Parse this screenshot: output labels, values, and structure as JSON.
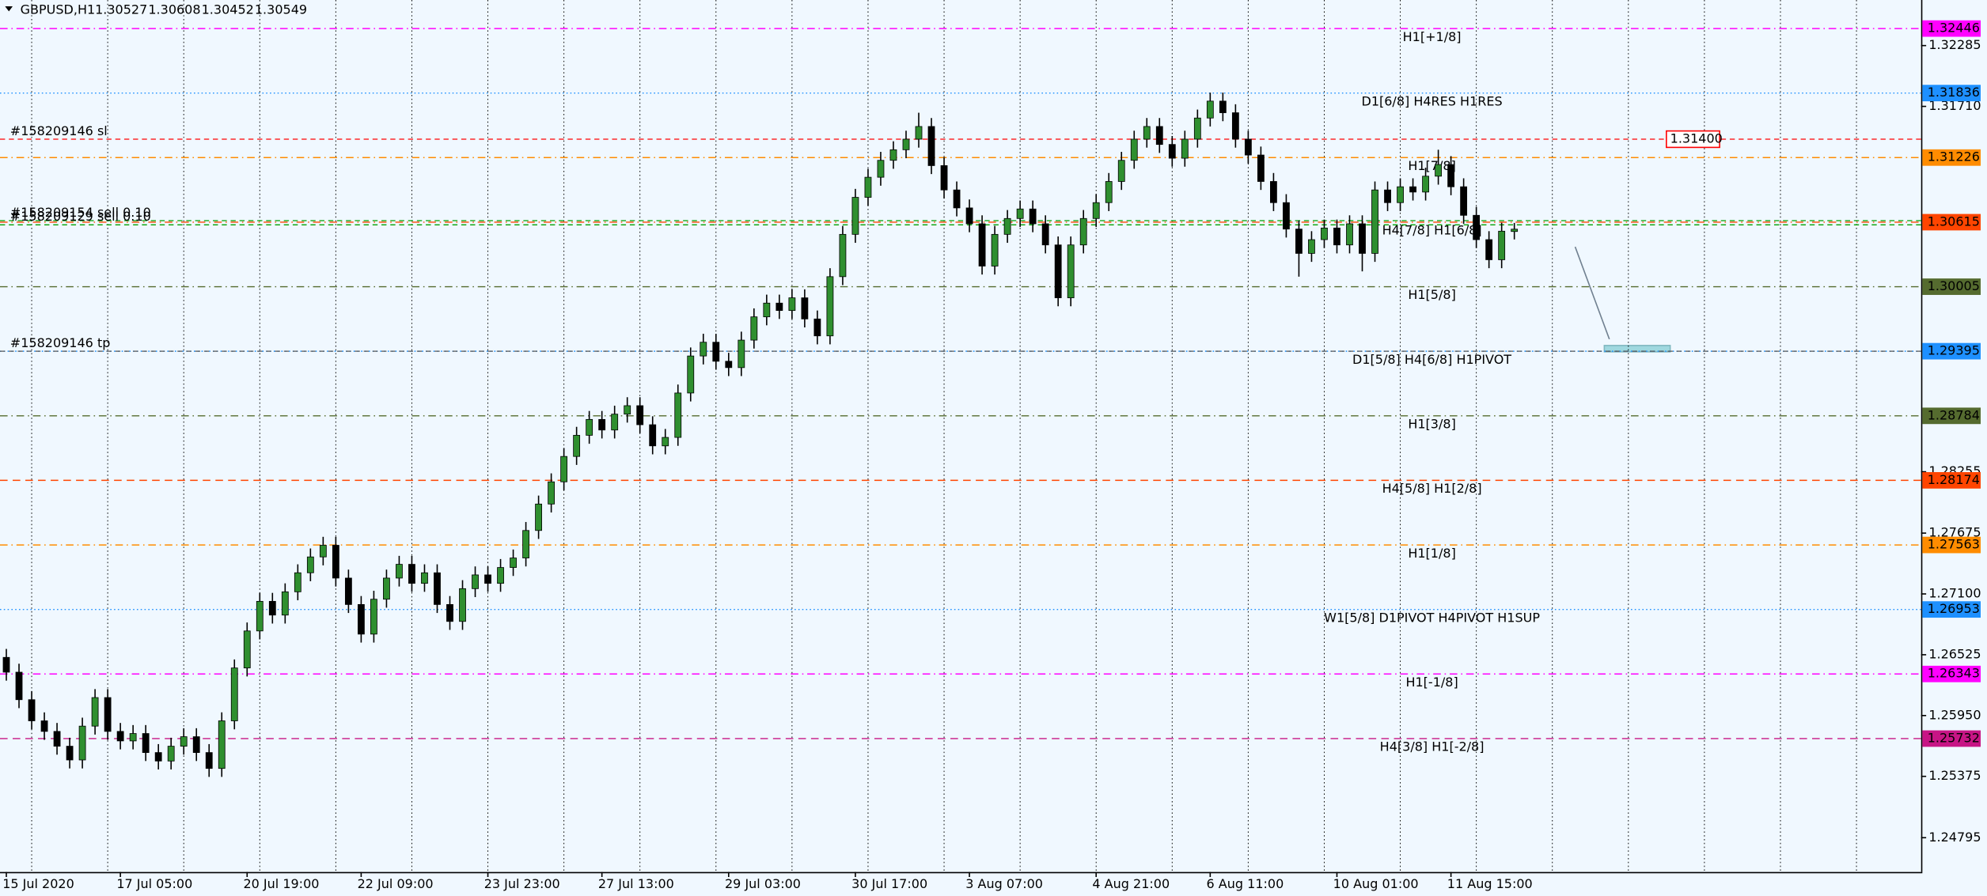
{
  "chart_data": {
    "type": "candlestick",
    "title": "GBPUSD,H1",
    "up_color": "#2f8f2f",
    "down_color": "#000000",
    "ylim": [
      1.24471,
      1.32716
    ],
    "yticks": [
      1.32285,
      {
        "value": 1.3171,
        "label": "1.31710"
      },
      1.28255,
      1.27675,
      {
        "value": 1.271,
        "label": "1.27100"
      },
      1.26525,
      {
        "value": 1.2595,
        "label": "1.25950"
      },
      1.25375,
      1.24795
    ],
    "categories": [
      "15 Jul 2020",
      null,
      null,
      null,
      null,
      null,
      null,
      null,
      null,
      "17 Jul 05:00",
      null,
      null,
      null,
      null,
      null,
      null,
      null,
      null,
      null,
      "20 Jul 19:00",
      null,
      null,
      null,
      null,
      null,
      null,
      null,
      null,
      "22 Jul 09:00",
      null,
      null,
      null,
      null,
      null,
      null,
      null,
      null,
      null,
      "23 Jul 23:00",
      null,
      null,
      null,
      null,
      null,
      null,
      null,
      null,
      "27 Jul 13:00",
      null,
      null,
      null,
      null,
      null,
      null,
      null,
      null,
      null,
      "29 Jul 03:00",
      null,
      null,
      null,
      null,
      null,
      null,
      null,
      null,
      null,
      "30 Jul 17:00",
      null,
      null,
      null,
      null,
      null,
      null,
      null,
      null,
      "3 Aug 07:00",
      null,
      null,
      null,
      null,
      null,
      null,
      null,
      null,
      null,
      "4 Aug 21:00",
      null,
      null,
      null,
      null,
      null,
      null,
      null,
      null,
      "6 Aug 11:00",
      null,
      null,
      null,
      null,
      null,
      null,
      null,
      null,
      null,
      "10 Aug 01:00",
      null,
      null,
      null,
      null,
      null,
      null,
      null,
      null,
      "11 Aug 15:00",
      null,
      null,
      null,
      null,
      null
    ],
    "ohlc": [
      [
        1.265,
        1.2658,
        1.2628,
        1.2636
      ],
      [
        1.2636,
        1.2644,
        1.2602,
        1.261
      ],
      [
        1.261,
        1.2618,
        1.2582,
        1.259
      ],
      [
        1.259,
        1.2598,
        1.2572,
        1.258
      ],
      [
        1.258,
        1.2588,
        1.2558,
        1.2566
      ],
      [
        1.2566,
        1.2574,
        1.2545,
        1.2553
      ],
      [
        1.2553,
        1.2593,
        1.2545,
        1.2585
      ],
      [
        1.2585,
        1.262,
        1.2577,
        1.2612
      ],
      [
        1.2612,
        1.262,
        1.2572,
        1.258
      ],
      [
        1.258,
        1.2588,
        1.2563,
        1.2571
      ],
      [
        1.2571,
        1.2586,
        1.2563,
        1.2578
      ],
      [
        1.2578,
        1.2586,
        1.2552,
        1.256
      ],
      [
        1.256,
        1.2568,
        1.2544,
        1.2552
      ],
      [
        1.2552,
        1.2574,
        1.2544,
        1.2566
      ],
      [
        1.2566,
        1.2583,
        1.2558,
        1.2575
      ],
      [
        1.2575,
        1.2583,
        1.2552,
        1.256
      ],
      [
        1.256,
        1.2568,
        1.2537,
        1.2545
      ],
      [
        1.2545,
        1.2598,
        1.2537,
        1.259
      ],
      [
        1.259,
        1.2648,
        1.2582,
        1.264
      ],
      [
        1.264,
        1.2683,
        1.2632,
        1.2675
      ],
      [
        1.2675,
        1.2711,
        1.2667,
        1.2703
      ],
      [
        1.2703,
        1.2711,
        1.2682,
        1.269
      ],
      [
        1.269,
        1.272,
        1.2682,
        1.2712
      ],
      [
        1.2712,
        1.2738,
        1.2704,
        1.273
      ],
      [
        1.273,
        1.2753,
        1.2722,
        1.2745
      ],
      [
        1.2745,
        1.2764,
        1.2737,
        1.2756
      ],
      [
        1.2756,
        1.2764,
        1.2717,
        1.2725
      ],
      [
        1.2725,
        1.2733,
        1.2692,
        1.27
      ],
      [
        1.27,
        1.2708,
        1.2664,
        1.2672
      ],
      [
        1.2672,
        1.2713,
        1.2664,
        1.2705
      ],
      [
        1.2705,
        1.2733,
        1.2697,
        1.2725
      ],
      [
        1.2725,
        1.2746,
        1.2717,
        1.2738
      ],
      [
        1.2738,
        1.2746,
        1.2712,
        1.272
      ],
      [
        1.272,
        1.2738,
        1.2712,
        1.273
      ],
      [
        1.273,
        1.2738,
        1.2692,
        1.27
      ],
      [
        1.27,
        1.2708,
        1.2676,
        1.2684
      ],
      [
        1.2684,
        1.2723,
        1.2676,
        1.2715
      ],
      [
        1.2715,
        1.2736,
        1.2707,
        1.2728
      ],
      [
        1.2728,
        1.2736,
        1.2712,
        1.272
      ],
      [
        1.272,
        1.2743,
        1.2712,
        1.2735
      ],
      [
        1.2735,
        1.2752,
        1.2727,
        1.2744
      ],
      [
        1.2744,
        1.2778,
        1.2736,
        1.277
      ],
      [
        1.277,
        1.2803,
        1.2762,
        1.2795
      ],
      [
        1.2795,
        1.2824,
        1.2787,
        1.2816
      ],
      [
        1.2816,
        1.2848,
        1.2808,
        1.284
      ],
      [
        1.284,
        1.2868,
        1.2832,
        1.286
      ],
      [
        1.286,
        1.2883,
        1.2852,
        1.2875
      ],
      [
        1.2875,
        1.2883,
        1.2857,
        1.2865
      ],
      [
        1.2865,
        1.2888,
        1.2857,
        1.288
      ],
      [
        1.288,
        1.2896,
        1.2872,
        1.2888
      ],
      [
        1.2888,
        1.2896,
        1.2862,
        1.287
      ],
      [
        1.287,
        1.2878,
        1.2842,
        1.285
      ],
      [
        1.285,
        1.2866,
        1.2842,
        1.2858
      ],
      [
        1.2858,
        1.2908,
        1.285,
        1.29
      ],
      [
        1.29,
        1.2943,
        1.2892,
        1.2935
      ],
      [
        1.2935,
        1.2956,
        1.2927,
        1.2948
      ],
      [
        1.2948,
        1.2956,
        1.2922,
        1.293
      ],
      [
        1.293,
        1.2938,
        1.2916,
        1.2924
      ],
      [
        1.2924,
        1.2958,
        1.2916,
        1.295
      ],
      [
        1.295,
        1.298,
        1.2942,
        1.2972
      ],
      [
        1.2972,
        1.2993,
        1.2964,
        1.2985
      ],
      [
        1.2985,
        1.2993,
        1.297,
        1.2978
      ],
      [
        1.2978,
        1.2998,
        1.297,
        1.299
      ],
      [
        1.299,
        1.2998,
        1.2962,
        1.297
      ],
      [
        1.297,
        1.2978,
        1.2946,
        1.2954
      ],
      [
        1.2954,
        1.3018,
        1.2946,
        1.301
      ],
      [
        1.301,
        1.3058,
        1.3002,
        1.305
      ],
      [
        1.305,
        1.3093,
        1.3042,
        1.3085
      ],
      [
        1.3085,
        1.3112,
        1.3077,
        1.3104
      ],
      [
        1.3104,
        1.3128,
        1.3096,
        1.312
      ],
      [
        1.312,
        1.3138,
        1.3112,
        1.313
      ],
      [
        1.313,
        1.3148,
        1.3122,
        1.314
      ],
      [
        1.314,
        1.3165,
        1.3132,
        1.3152
      ],
      [
        1.3152,
        1.316,
        1.3107,
        1.3115
      ],
      [
        1.3115,
        1.3123,
        1.3084,
        1.3092
      ],
      [
        1.3092,
        1.31,
        1.3067,
        1.3075
      ],
      [
        1.3075,
        1.3083,
        1.3052,
        1.306
      ],
      [
        1.306,
        1.3068,
        1.3012,
        1.302
      ],
      [
        1.302,
        1.3058,
        1.3012,
        1.305
      ],
      [
        1.305,
        1.3073,
        1.3042,
        1.3065
      ],
      [
        1.3065,
        1.3082,
        1.3057,
        1.3074
      ],
      [
        1.3074,
        1.3082,
        1.3052,
        1.306
      ],
      [
        1.306,
        1.3068,
        1.3032,
        1.304
      ],
      [
        1.304,
        1.3048,
        1.2982,
        1.299
      ],
      [
        1.299,
        1.3048,
        1.2982,
        1.304
      ],
      [
        1.304,
        1.3073,
        1.3032,
        1.3065
      ],
      [
        1.3065,
        1.3088,
        1.3057,
        1.308
      ],
      [
        1.308,
        1.3108,
        1.3072,
        1.31
      ],
      [
        1.31,
        1.3128,
        1.3092,
        1.312
      ],
      [
        1.312,
        1.3148,
        1.3112,
        1.314
      ],
      [
        1.314,
        1.316,
        1.3132,
        1.3152
      ],
      [
        1.3152,
        1.316,
        1.3127,
        1.3135
      ],
      [
        1.3135,
        1.3143,
        1.3114,
        1.3122
      ],
      [
        1.3122,
        1.3148,
        1.3114,
        1.314
      ],
      [
        1.314,
        1.3168,
        1.3132,
        1.316
      ],
      [
        1.316,
        1.3184,
        1.3152,
        1.3176
      ],
      [
        1.3176,
        1.3184,
        1.3157,
        1.3165
      ],
      [
        1.3165,
        1.3173,
        1.3132,
        1.314
      ],
      [
        1.314,
        1.3148,
        1.3117,
        1.3125
      ],
      [
        1.3125,
        1.3133,
        1.3092,
        1.31
      ],
      [
        1.31,
        1.3108,
        1.3072,
        1.308
      ],
      [
        1.308,
        1.3088,
        1.3047,
        1.3055
      ],
      [
        1.3055,
        1.3063,
        1.301,
        1.3032
      ],
      [
        1.3032,
        1.3053,
        1.3024,
        1.3045
      ],
      [
        1.3045,
        1.3064,
        1.3037,
        1.3056
      ],
      [
        1.3056,
        1.3064,
        1.3032,
        1.304
      ],
      [
        1.304,
        1.3068,
        1.3032,
        1.306
      ],
      [
        1.306,
        1.3068,
        1.3015,
        1.3032
      ],
      [
        1.3032,
        1.31,
        1.3024,
        1.3092
      ],
      [
        1.3092,
        1.31,
        1.3072,
        1.308
      ],
      [
        1.308,
        1.3103,
        1.3072,
        1.3095
      ],
      [
        1.3095,
        1.3103,
        1.3082,
        1.309
      ],
      [
        1.309,
        1.3113,
        1.3082,
        1.3105
      ],
      [
        1.3105,
        1.313,
        1.3097,
        1.3116
      ],
      [
        1.3116,
        1.3124,
        1.3087,
        1.3095
      ],
      [
        1.3095,
        1.3103,
        1.306,
        1.3068
      ],
      [
        1.3068,
        1.3076,
        1.3037,
        1.3045
      ],
      [
        1.3045,
        1.3053,
        1.3018,
        1.3026
      ],
      [
        1.3026,
        1.3061,
        1.3018,
        1.3053
      ],
      [
        1.30527,
        1.30608,
        1.30452,
        1.30549
      ]
    ],
    "levels": [
      {
        "label": "H1[+1/8]",
        "price": 1.32446,
        "color": "#ff00ff",
        "style": "dashdot"
      },
      {
        "label": "D1[6/8] H4RES H1RES",
        "price": 1.31836,
        "color": "#1e90ff",
        "style": "dot"
      },
      {
        "label": "H1[7/8]",
        "price": 1.31226,
        "color": "#ff8c00",
        "style": "dashdot"
      },
      {
        "label": "H4[7/8] H1[6/8]",
        "price": 1.30615,
        "color": "#ff4500",
        "style": "dashdot"
      },
      {
        "label": "H1[5/8]",
        "price": 1.30005,
        "color": "#556b2f",
        "style": "dashdot"
      },
      {
        "label": "D1[5/8] H4[6/8] H1PIVOT",
        "price": 1.29395,
        "color": "#1e90ff",
        "style": "dot"
      },
      {
        "label": "H1[3/8]",
        "price": 1.28784,
        "color": "#556b2f",
        "style": "dashdot"
      },
      {
        "label": "H4[5/8] H1[2/8]",
        "price": 1.28174,
        "color": "#ff4500",
        "style": "dash"
      },
      {
        "label": "H1[1/8]",
        "price": 1.27563,
        "color": "#ff8c00",
        "style": "dashdot"
      },
      {
        "label": "W1[5/8] D1PIVOT H4PIVOT H1SUP",
        "price": 1.26953,
        "color": "#1e90ff",
        "style": "dot"
      },
      {
        "label": "H1[-1/8]",
        "price": 1.26343,
        "color": "#ff00ff",
        "style": "dashdot"
      },
      {
        "label": "H4[3/8] H1[-2/8]",
        "price": 1.25732,
        "color": "#c71585",
        "style": "dash"
      }
    ],
    "orders": [
      {
        "label": "#158209146 sl",
        "price": {
          "value": 1.314,
          "label": "1.31400"
        },
        "color": "#ff0000"
      },
      {
        "label": "#158209146 tp",
        "price": 1.29395,
        "color": "#555555"
      },
      {
        "label": "#158209154 sell 0.10",
        "price": 1.3063,
        "color": "#00a000"
      },
      {
        "label": "#158209129 sell 0.10",
        "price": 1.3059,
        "color": "#00a000"
      }
    ]
  }
}
